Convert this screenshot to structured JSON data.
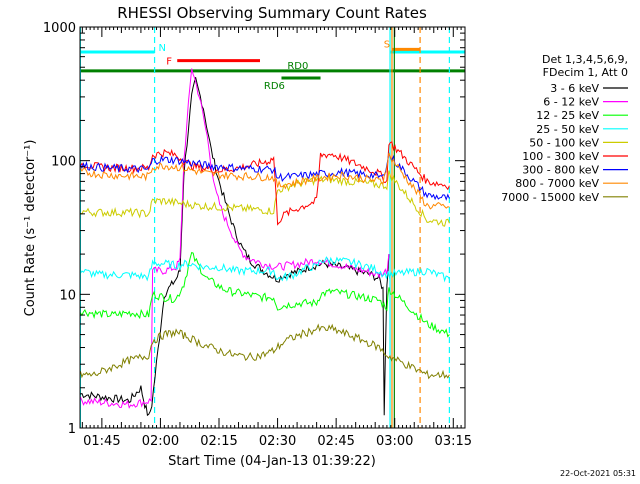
{
  "chart_data": {
    "type": "line",
    "title": "RHESSI Observing Summary Count Rates",
    "xlabel": "Start Time (04-Jan-13 01:39:22)",
    "ylabel": "Count Rate (s⁻¹ detector⁻¹)",
    "y_scale": "log",
    "ylim": [
      1,
      1000
    ],
    "xlim_minutes": [
      99.4,
      198
    ],
    "x_ticks": [
      {
        "t": 105,
        "label": "01:45"
      },
      {
        "t": 120,
        "label": "02:00"
      },
      {
        "t": 135,
        "label": "02:15"
      },
      {
        "t": 150,
        "label": "02:30"
      },
      {
        "t": 165,
        "label": "02:45"
      },
      {
        "t": 180,
        "label": "03:00"
      },
      {
        "t": 195,
        "label": "03:15"
      }
    ],
    "y_ticks": [
      {
        "v": 1,
        "label": "1"
      },
      {
        "v": 10,
        "label": "10"
      },
      {
        "v": 100,
        "label": "100"
      },
      {
        "v": 1000,
        "label": "1000"
      }
    ],
    "legend": {
      "position": "right",
      "header": [
        "Det 1,3,4,5,6,9,",
        "FDecim 1, Att 0"
      ]
    },
    "series": [
      {
        "name": "3 - 6 keV",
        "color": "#000000",
        "points": [
          [
            99.5,
            1.8
          ],
          [
            112,
            1.6
          ],
          [
            115,
            2
          ],
          [
            116,
            1.5
          ],
          [
            117,
            1.2
          ],
          [
            117.8,
            1.5
          ],
          [
            121,
            10
          ],
          [
            124,
            13
          ],
          [
            125,
            15
          ],
          [
            126,
            80
          ],
          [
            128,
            300
          ],
          [
            129,
            400
          ],
          [
            131,
            250
          ],
          [
            133,
            120
          ],
          [
            135,
            70
          ],
          [
            137,
            45
          ],
          [
            139,
            30
          ],
          [
            141,
            22
          ],
          [
            143,
            18
          ],
          [
            145,
            16
          ],
          [
            148,
            14
          ],
          [
            150,
            13
          ],
          [
            152,
            14
          ],
          [
            156,
            15
          ],
          [
            158,
            16
          ],
          [
            162,
            17
          ],
          [
            166,
            16
          ],
          [
            170,
            15
          ],
          [
            174,
            14
          ],
          [
            176,
            13
          ],
          [
            177,
            11
          ],
          [
            177.3,
            1.3
          ],
          [
            178,
            12
          ],
          [
            178.5,
            20
          ]
        ]
      },
      {
        "name": "6 - 12 keV",
        "color": "#ff00ff",
        "points": [
          [
            99.5,
            1.6
          ],
          [
            112,
            1.5
          ],
          [
            117.6,
            1.6
          ],
          [
            118,
            15
          ],
          [
            121,
            15
          ],
          [
            124,
            16
          ],
          [
            125,
            18
          ],
          [
            126,
            100
          ],
          [
            128,
            500
          ],
          [
            130,
            300
          ],
          [
            132,
            150
          ],
          [
            134,
            60
          ],
          [
            136,
            40
          ],
          [
            138,
            30
          ],
          [
            140,
            22
          ],
          [
            142,
            19
          ],
          [
            146,
            17
          ],
          [
            150,
            16
          ],
          [
            156,
            17
          ],
          [
            160,
            18
          ],
          [
            164,
            17
          ],
          [
            168,
            16
          ],
          [
            172,
            15
          ],
          [
            176,
            14
          ],
          [
            178,
            15
          ],
          [
            178.5,
            20
          ]
        ]
      },
      {
        "name": "12 - 25 keV",
        "color": "#00ff00",
        "points": [
          [
            99.5,
            7.5
          ],
          [
            103,
            7.2
          ],
          [
            108,
            7.0
          ],
          [
            112,
            7.3
          ],
          [
            117,
            7.0
          ],
          [
            118,
            10
          ],
          [
            121,
            9.5
          ],
          [
            124,
            9.2
          ],
          [
            126,
            12
          ],
          [
            128,
            20
          ],
          [
            130,
            16
          ],
          [
            132,
            13
          ],
          [
            134,
            12
          ],
          [
            136,
            11
          ],
          [
            138,
            10.5
          ],
          [
            142,
            10
          ],
          [
            146,
            9.5
          ],
          [
            149,
            9.5
          ],
          [
            150,
            8
          ],
          [
            152,
            8.3
          ],
          [
            156,
            8.6
          ],
          [
            160,
            8.6
          ],
          [
            161,
            10
          ],
          [
            164,
            10.5
          ],
          [
            168,
            10
          ],
          [
            172,
            9.5
          ],
          [
            176,
            9
          ],
          [
            178,
            8
          ],
          [
            178.5,
            11
          ],
          [
            188.3,
            6
          ],
          [
            194,
            5
          ]
        ]
      },
      {
        "name": "25 - 50 keV",
        "color": "#00ffff",
        "points": [
          [
            99.5,
            15
          ],
          [
            104,
            14
          ],
          [
            108,
            14
          ],
          [
            112,
            14
          ],
          [
            117,
            13.5
          ],
          [
            118,
            17
          ],
          [
            121,
            17
          ],
          [
            124,
            16.5
          ],
          [
            127,
            17
          ],
          [
            131,
            16
          ],
          [
            135,
            16
          ],
          [
            139,
            15
          ],
          [
            143,
            15
          ],
          [
            147,
            15
          ],
          [
            149,
            15
          ],
          [
            150,
            13
          ],
          [
            154,
            14
          ],
          [
            158,
            16
          ],
          [
            160,
            16
          ],
          [
            161,
            18
          ],
          [
            164,
            18
          ],
          [
            168,
            17.5
          ],
          [
            172,
            16.5
          ],
          [
            176,
            15
          ],
          [
            177.5,
            14
          ],
          [
            188.3,
            15
          ],
          [
            194,
            13
          ]
        ]
      },
      {
        "name": "50 - 100 keV",
        "color": "#cccc00",
        "points": [
          [
            99.5,
            42
          ],
          [
            103,
            41
          ],
          [
            108,
            41
          ],
          [
            112,
            41
          ],
          [
            117,
            40
          ],
          [
            118,
            50
          ],
          [
            121,
            50
          ],
          [
            125,
            48
          ],
          [
            130,
            46
          ],
          [
            135,
            45
          ],
          [
            140,
            44
          ],
          [
            145,
            43
          ],
          [
            149,
            42
          ],
          [
            150,
            60
          ],
          [
            154,
            66
          ],
          [
            158,
            70
          ],
          [
            160,
            72
          ],
          [
            164,
            72
          ],
          [
            168,
            70
          ],
          [
            172,
            68
          ],
          [
            176,
            66
          ],
          [
            178,
            65
          ],
          [
            178.5,
            80
          ],
          [
            188.3,
            36
          ],
          [
            194,
            34
          ]
        ]
      },
      {
        "name": "100 - 300 keV",
        "color": "#ff0000",
        "points": [
          [
            99.5,
            95
          ],
          [
            104,
            90
          ],
          [
            108,
            88
          ],
          [
            112,
            88
          ],
          [
            117,
            88
          ],
          [
            118,
            110
          ],
          [
            121,
            115
          ],
          [
            124,
            110
          ],
          [
            126,
            100
          ],
          [
            128,
            92
          ],
          [
            131,
            88
          ],
          [
            135,
            85
          ],
          [
            140,
            88
          ],
          [
            145,
            95
          ],
          [
            148,
            100
          ],
          [
            149,
            105
          ],
          [
            150,
            35
          ],
          [
            152,
            40
          ],
          [
            156,
            45
          ],
          [
            160,
            50
          ],
          [
            161,
            110
          ],
          [
            164,
            112
          ],
          [
            168,
            100
          ],
          [
            172,
            90
          ],
          [
            176,
            80
          ],
          [
            178,
            70
          ],
          [
            178.5,
            140
          ],
          [
            188.3,
            70
          ],
          [
            194,
            65
          ]
        ]
      },
      {
        "name": "300 - 800 keV",
        "color": "#0000ff",
        "points": [
          [
            99.5,
            92
          ],
          [
            103,
            90
          ],
          [
            107,
            88
          ],
          [
            112,
            87
          ],
          [
            117,
            86
          ],
          [
            118,
            100
          ],
          [
            121,
            102
          ],
          [
            124,
            101
          ],
          [
            128,
            96
          ],
          [
            132,
            92
          ],
          [
            136,
            90
          ],
          [
            140,
            88
          ],
          [
            145,
            87
          ],
          [
            149,
            86
          ],
          [
            150,
            75
          ],
          [
            154,
            76
          ],
          [
            158,
            78
          ],
          [
            162,
            80
          ],
          [
            166,
            82
          ],
          [
            170,
            80
          ],
          [
            174,
            78
          ],
          [
            177,
            75
          ],
          [
            178.5,
            110
          ],
          [
            188.3,
            55
          ],
          [
            194,
            52
          ]
        ]
      },
      {
        "name": "800 - 7000 keV",
        "color": "#ff8800",
        "points": [
          [
            99.5,
            83
          ],
          [
            103,
            80
          ],
          [
            107,
            78
          ],
          [
            112,
            77
          ],
          [
            117,
            76
          ],
          [
            118,
            90
          ],
          [
            121,
            92
          ],
          [
            124,
            90
          ],
          [
            128,
            85
          ],
          [
            132,
            80
          ],
          [
            136,
            78
          ],
          [
            140,
            77
          ],
          [
            145,
            76
          ],
          [
            149,
            75
          ],
          [
            150,
            65
          ],
          [
            154,
            68
          ],
          [
            158,
            72
          ],
          [
            162,
            75
          ],
          [
            166,
            78
          ],
          [
            170,
            75
          ],
          [
            174,
            72
          ],
          [
            177,
            70
          ],
          [
            178.5,
            110
          ],
          [
            188.3,
            46
          ],
          [
            194,
            45
          ]
        ]
      },
      {
        "name": "7000 - 15000 keV",
        "color": "#808000",
        "points": [
          [
            99.5,
            2.5
          ],
          [
            103,
            2.5
          ],
          [
            107,
            2.8
          ],
          [
            112,
            3.2
          ],
          [
            117,
            3.5
          ],
          [
            118,
            4.5
          ],
          [
            121,
            5
          ],
          [
            124,
            5.2
          ],
          [
            127,
            4.8
          ],
          [
            131,
            4.2
          ],
          [
            135,
            3.8
          ],
          [
            139,
            3.5
          ],
          [
            143,
            3.4
          ],
          [
            146,
            3.5
          ],
          [
            149,
            3.8
          ],
          [
            152,
            4.5
          ],
          [
            156,
            5
          ],
          [
            160,
            5.5
          ],
          [
            164,
            5.5
          ],
          [
            168,
            5
          ],
          [
            172,
            4.5
          ],
          [
            176,
            4
          ],
          [
            178,
            3.5
          ],
          [
            188.3,
            2.5
          ],
          [
            194,
            2.5
          ]
        ]
      }
    ],
    "attenuator_states": [
      {
        "label": "N",
        "color": "#00ffff",
        "segments": [
          [
            99.5,
            118.5
          ],
          [
            178.8,
            198
          ]
        ]
      },
      {
        "label": "F",
        "color": "#ff0000",
        "segments": [
          [
            124.3,
            145.5
          ]
        ]
      },
      {
        "label": "S",
        "color": "#ff8800",
        "segments": [
          [
            179.3,
            186.5
          ]
        ]
      },
      {
        "label": "RD0",
        "color": "#008000",
        "segments": [
          [
            99.5,
            198
          ]
        ]
      },
      {
        "label": "RD6",
        "color": "#008000",
        "segments": [
          [
            151,
            161
          ]
        ]
      }
    ]
  },
  "footer": {
    "date": "22-Oct-2021 05:31"
  }
}
